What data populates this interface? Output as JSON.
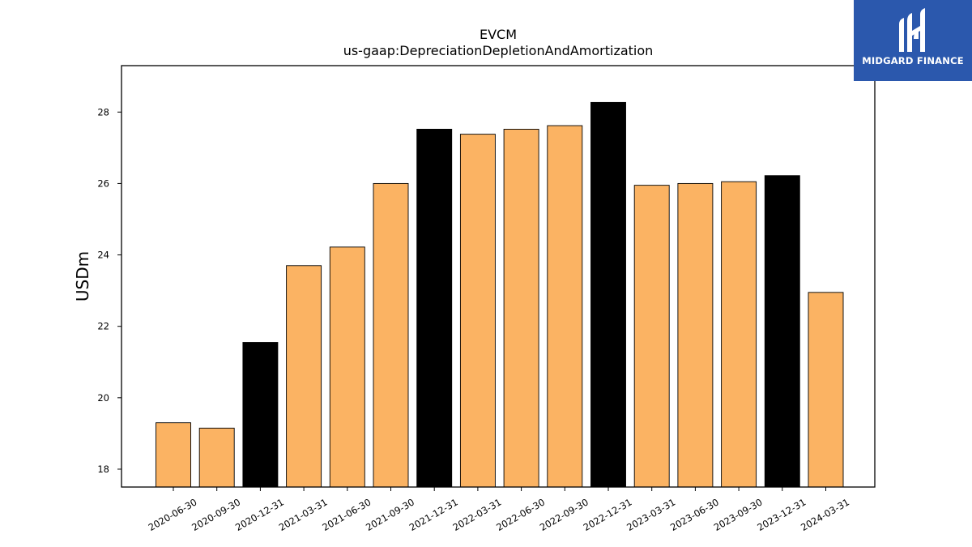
{
  "chart_data": {
    "type": "bar",
    "title": "EVCM",
    "subtitle": "us-gaap:DepreciationDepletionAndAmortization",
    "ylabel": "USDm",
    "xlabel": "",
    "ylim": [
      17.5,
      29.3
    ],
    "yticks": [
      18,
      20,
      22,
      24,
      26,
      28
    ],
    "categories": [
      "2020-06-30",
      "2020-09-30",
      "2020-12-31",
      "2021-03-31",
      "2021-06-30",
      "2021-09-30",
      "2021-12-31",
      "2022-03-31",
      "2022-06-30",
      "2022-09-30",
      "2022-12-31",
      "2023-03-31",
      "2023-06-30",
      "2023-09-30",
      "2023-12-31",
      "2024-03-31"
    ],
    "values": [
      19.3,
      19.15,
      21.55,
      23.7,
      24.22,
      26.0,
      27.52,
      27.38,
      27.52,
      27.62,
      28.27,
      25.95,
      26.0,
      26.05,
      26.22,
      22.95
    ],
    "highlight_year_end": [
      false,
      false,
      true,
      false,
      false,
      false,
      true,
      false,
      false,
      false,
      true,
      false,
      false,
      false,
      true,
      false
    ],
    "colors": {
      "quarter": "#fbb363",
      "year_end": "#000000",
      "edge": "#000000"
    },
    "grid": false
  },
  "logo": {
    "text": "MIDGARD FINANCE",
    "background": "#2b58ad"
  }
}
